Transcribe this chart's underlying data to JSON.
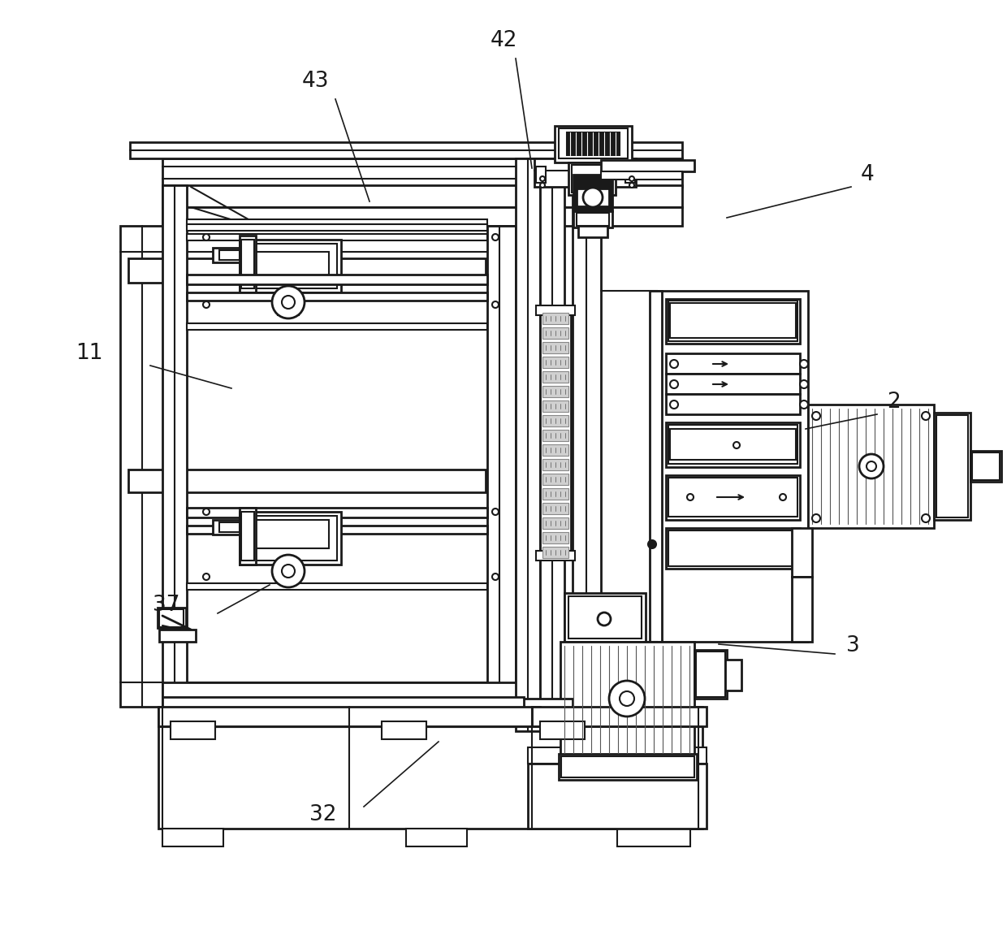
{
  "bg_color": "#ffffff",
  "lc": "#1a1a1a",
  "lw": 1.5,
  "lw2": 2.0,
  "fig_width": 12.4,
  "fig_height": 11.67,
  "label_configs": [
    [
      "42",
      620,
      50,
      635,
      72,
      655,
      207
    ],
    [
      "43",
      388,
      100,
      413,
      122,
      455,
      248
    ],
    [
      "4",
      1068,
      215,
      1048,
      230,
      895,
      268
    ],
    [
      "11",
      110,
      435,
      185,
      450,
      285,
      478
    ],
    [
      "2",
      1100,
      495,
      1080,
      510,
      992,
      528
    ],
    [
      "37",
      205,
      745,
      268,
      755,
      332,
      720
    ],
    [
      "3",
      1050,
      795,
      1028,
      805,
      885,
      793
    ],
    [
      "32",
      398,
      1003,
      448,
      993,
      540,
      913
    ]
  ]
}
